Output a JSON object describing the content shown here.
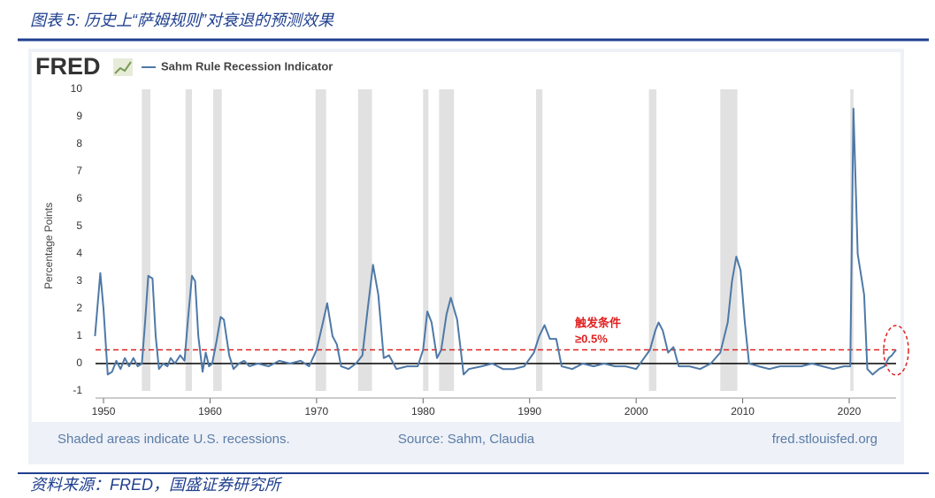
{
  "header": {
    "title": "图表 5: 历史上“萨姆规则”对衰退的预测效果"
  },
  "footer": {
    "source": "资料来源：FRED，国盛证券研究所"
  },
  "chart_data": {
    "type": "line",
    "logo": "FRED",
    "ylabel": "Percentage Points",
    "annotation": {
      "line1": "触发条件",
      "line2": "≥0.5%",
      "color": "#e02020"
    },
    "notes": {
      "left": "Shaded areas indicate U.S. recessions.",
      "center": "Source: Sahm, Claudia",
      "right": "fred.stlouisfed.org"
    },
    "xlim": [
      1949.25,
      2024.4
    ],
    "xticks": [
      1950,
      1960,
      1970,
      1980,
      1990,
      2000,
      2010,
      2020
    ],
    "ylim": [
      -1,
      10
    ],
    "yticks": [
      -1,
      0,
      1,
      2,
      3,
      4,
      5,
      6,
      7,
      8,
      9,
      10
    ],
    "recessions": [
      [
        1953.6,
        1954.4
      ],
      [
        1957.7,
        1958.3
      ],
      [
        1960.3,
        1961.1
      ],
      [
        1969.9,
        1970.9
      ],
      [
        1973.9,
        1975.2
      ],
      [
        1980.0,
        1980.5
      ],
      [
        1981.5,
        1982.9
      ],
      [
        1990.6,
        1991.2
      ],
      [
        2001.2,
        2001.9
      ],
      [
        2007.9,
        2009.5
      ],
      [
        2020.1,
        2020.4
      ]
    ],
    "recession_color": "#e1e1e1",
    "reference_lines": [
      {
        "value": 0,
        "color": "#000000",
        "dashed": false
      },
      {
        "value": 0.5,
        "color": "#e02020",
        "dashed": true
      }
    ],
    "x": [
      1949.2,
      1949.7,
      1950.0,
      1950.4,
      1950.8,
      1951.2,
      1951.6,
      1952.0,
      1952.4,
      1952.8,
      1953.2,
      1953.6,
      1953.9,
      1954.2,
      1954.6,
      1954.9,
      1955.2,
      1955.6,
      1956.0,
      1956.3,
      1956.7,
      1957.2,
      1957.6,
      1957.9,
      1958.3,
      1958.6,
      1958.9,
      1959.3,
      1959.6,
      1959.9,
      1960.2,
      1960.6,
      1961.0,
      1961.3,
      1961.8,
      1962.2,
      1962.7,
      1963.2,
      1963.7,
      1964.5,
      1965.5,
      1966.5,
      1967.5,
      1968.5,
      1969.3,
      1970.0,
      1970.6,
      1971.0,
      1971.5,
      1971.9,
      1972.3,
      1973.0,
      1973.7,
      1974.3,
      1974.8,
      1975.3,
      1975.8,
      1976.3,
      1976.8,
      1977.5,
      1978.5,
      1979.5,
      1980.0,
      1980.4,
      1980.8,
      1981.3,
      1981.7,
      1982.2,
      1982.6,
      1983.2,
      1983.8,
      1984.3,
      1985.5,
      1986.5,
      1987.5,
      1988.5,
      1989.5,
      1990.4,
      1990.9,
      1991.4,
      1991.9,
      1992.5,
      1993.0,
      1994.0,
      1995.0,
      1996.0,
      1997.0,
      1998.0,
      1999.0,
      2000.0,
      2001.3,
      2001.8,
      2002.1,
      2002.5,
      2003.0,
      2003.5,
      2004.0,
      2005.0,
      2006.0,
      2007.0,
      2007.9,
      2008.6,
      2009.0,
      2009.4,
      2009.8,
      2010.2,
      2010.6,
      2011.5,
      2012.5,
      2013.5,
      2014.5,
      2015.5,
      2016.5,
      2017.5,
      2018.5,
      2019.5,
      2020.1,
      2020.4,
      2020.8,
      2021.2,
      2021.4,
      2021.7,
      2022.2,
      2022.8,
      2023.3,
      2023.7,
      2024.0,
      2024.4
    ],
    "series": [
      {
        "name": "Sahm Rule Recession Indicator",
        "color": "#4e79a7",
        "values": [
          1.0,
          3.3,
          2.0,
          -0.4,
          -0.3,
          0.1,
          -0.2,
          0.2,
          -0.1,
          0.2,
          -0.1,
          0,
          1.5,
          3.2,
          3.1,
          1.0,
          -0.2,
          0,
          -0.1,
          0.2,
          0,
          0.3,
          0.1,
          1.5,
          3.2,
          3.0,
          1.0,
          -0.3,
          0.4,
          -0.1,
          0,
          0.8,
          1.7,
          1.6,
          0.3,
          -0.2,
          0,
          0.1,
          -0.1,
          0,
          -0.1,
          0.1,
          0,
          0.1,
          -0.1,
          0.5,
          1.5,
          2.2,
          1.0,
          0.7,
          -0.1,
          -0.2,
          0,
          0.3,
          2.0,
          3.6,
          2.5,
          0.2,
          0.3,
          -0.2,
          -0.1,
          -0.1,
          0.5,
          1.9,
          1.5,
          0.2,
          0.5,
          1.8,
          2.4,
          1.6,
          -0.4,
          -0.2,
          -0.1,
          0,
          -0.2,
          -0.2,
          -0.1,
          0.4,
          1.0,
          1.4,
          0.9,
          0.9,
          -0.1,
          -0.2,
          0,
          -0.1,
          0,
          -0.1,
          -0.1,
          -0.2,
          0.5,
          1.2,
          1.5,
          1.2,
          0.4,
          0.6,
          -0.1,
          -0.1,
          -0.2,
          0,
          0.4,
          1.5,
          3.0,
          3.9,
          3.4,
          1.5,
          0,
          -0.1,
          -0.2,
          -0.1,
          -0.1,
          -0.1,
          0,
          -0.1,
          -0.2,
          -0.1,
          -0.1,
          9.3,
          4.0,
          3.0,
          2.5,
          -0.2,
          -0.4,
          -0.2,
          -0.1,
          0.2,
          0.3,
          0.5
        ]
      }
    ]
  }
}
